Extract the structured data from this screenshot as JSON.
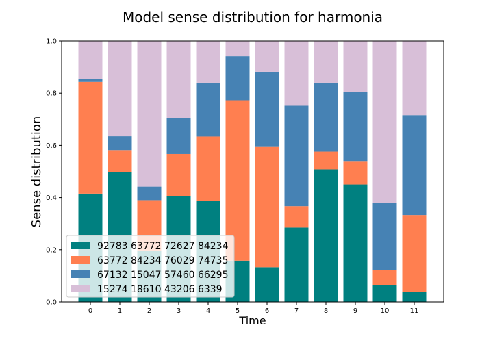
{
  "chart_data": {
    "type": "bar",
    "stacked": true,
    "title": "Model sense distribution for harmonia",
    "xlabel": "Time",
    "ylabel": "Sense distribution",
    "categories": [
      "0",
      "1",
      "2",
      "3",
      "4",
      "5",
      "6",
      "7",
      "8",
      "9",
      "10",
      "11"
    ],
    "ylim": [
      0,
      1.0
    ],
    "yticks": [
      "0.0",
      "0.2",
      "0.4",
      "0.6",
      "0.8",
      "1.0"
    ],
    "grid": false,
    "legend_position": "lower-left",
    "series": [
      {
        "name": "92783 63772 72627 84234",
        "color": "#008080",
        "values": [
          0.415,
          0.497,
          0.195,
          0.405,
          0.387,
          0.158,
          0.133,
          0.285,
          0.508,
          0.45,
          0.065,
          0.037
        ]
      },
      {
        "name": "63772 84234 76029 74735",
        "color": "#ff7f50",
        "values": [
          0.428,
          0.085,
          0.195,
          0.162,
          0.247,
          0.615,
          0.461,
          0.082,
          0.068,
          0.09,
          0.057,
          0.296
        ]
      },
      {
        "name": "67132 15047 57460 66295",
        "color": "#4682b4",
        "values": [
          0.012,
          0.053,
          0.052,
          0.138,
          0.206,
          0.169,
          0.288,
          0.385,
          0.264,
          0.265,
          0.258,
          0.383
        ]
      },
      {
        "name": "15274 18610 43206 6339",
        "color": "#d8bfd8",
        "values": [
          0.145,
          0.365,
          0.558,
          0.295,
          0.16,
          0.058,
          0.118,
          0.248,
          0.16,
          0.195,
          0.62,
          0.284
        ]
      }
    ]
  }
}
